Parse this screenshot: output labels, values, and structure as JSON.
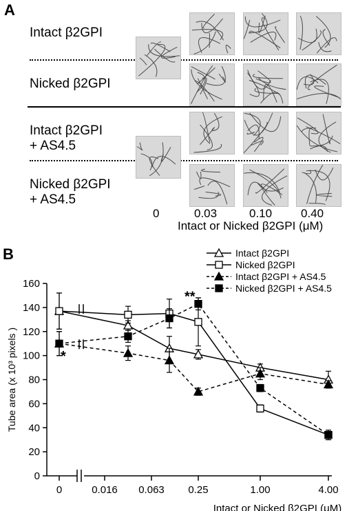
{
  "panel_a": {
    "letter": "A",
    "row_labels": {
      "intact": "Intact β2GPI",
      "nicked": "Nicked β2GPI",
      "intact_as_line1": "Intact β2GPI",
      "intact_as_line2": "+ AS4.5",
      "nicked_as_line1": "Nicked β2GPI",
      "nicked_as_line2": "+ AS4.5"
    },
    "concentrations": [
      "0",
      "0.03",
      "0.10",
      "0.40"
    ],
    "xlabel": "Intact or Nicked β2GPI (μM)"
  },
  "panel_b": {
    "letter": "B"
  },
  "chart_data": {
    "type": "line",
    "xlabel": "Intact or Nicked β2GPI (μM)",
    "ylabel": "Tube area (x 10³ pixels )",
    "ylim": [
      0,
      160
    ],
    "yticks": [
      "0",
      "20",
      "40",
      "60",
      "80",
      "100",
      "120",
      "140",
      "160"
    ],
    "categories": [
      "0",
      "0.016",
      "0.063",
      "0.25",
      "1.00",
      "4.00"
    ],
    "x_tick_labels": [
      "0",
      "0.016",
      "0.063",
      "0.25",
      "1.00",
      "4.00"
    ],
    "x_values": [
      0,
      0.016,
      0.031,
      0.125,
      0.25,
      1.0,
      4.0
    ],
    "axis_break": true,
    "legend_position": "top-right",
    "annotations": [
      {
        "text": "**",
        "near_x": 0.25,
        "series": "Nicked β2GPI + AS4.5"
      },
      {
        "text": "*",
        "near_x": 0,
        "series": "Intact β2GPI + AS4.5"
      }
    ],
    "series": [
      {
        "name": "Intact β2GPI",
        "marker": "open-triangle",
        "line": "solid",
        "x": [
          0,
          0.016,
          0.031,
          0.125,
          0.25,
          1.0,
          4.0
        ],
        "y": [
          137,
          136,
          125,
          106,
          101,
          90,
          80
        ],
        "err": [
          15,
          0,
          4,
          10,
          4,
          3,
          7
        ]
      },
      {
        "name": "Nicked β2GPI",
        "marker": "open-square",
        "line": "solid",
        "x": [
          0,
          0.016,
          0.031,
          0.125,
          0.25,
          1.0,
          4.0
        ],
        "y": [
          137,
          135,
          134,
          135,
          128,
          56,
          34
        ],
        "err": [
          15,
          0,
          7,
          12,
          20,
          3,
          4
        ]
      },
      {
        "name": "Intact β2GPI + AS4.5",
        "marker": "filled-triangle",
        "line": "dashed",
        "x": [
          0,
          0.016,
          0.031,
          0.125,
          0.25,
          1.0,
          4.0
        ],
        "y": [
          110,
          107,
          102,
          96,
          70,
          85,
          76
        ],
        "err": [
          10,
          0,
          6,
          10,
          3,
          5,
          3
        ]
      },
      {
        "name": "Nicked β2GPI + AS4.5",
        "marker": "filled-square",
        "line": "dashed",
        "x": [
          0,
          0.016,
          0.031,
          0.125,
          0.25,
          1.0,
          4.0
        ],
        "y": [
          110,
          110,
          116,
          131,
          143,
          73,
          34
        ],
        "err": [
          10,
          0,
          5,
          8,
          5,
          3,
          3
        ]
      }
    ]
  }
}
